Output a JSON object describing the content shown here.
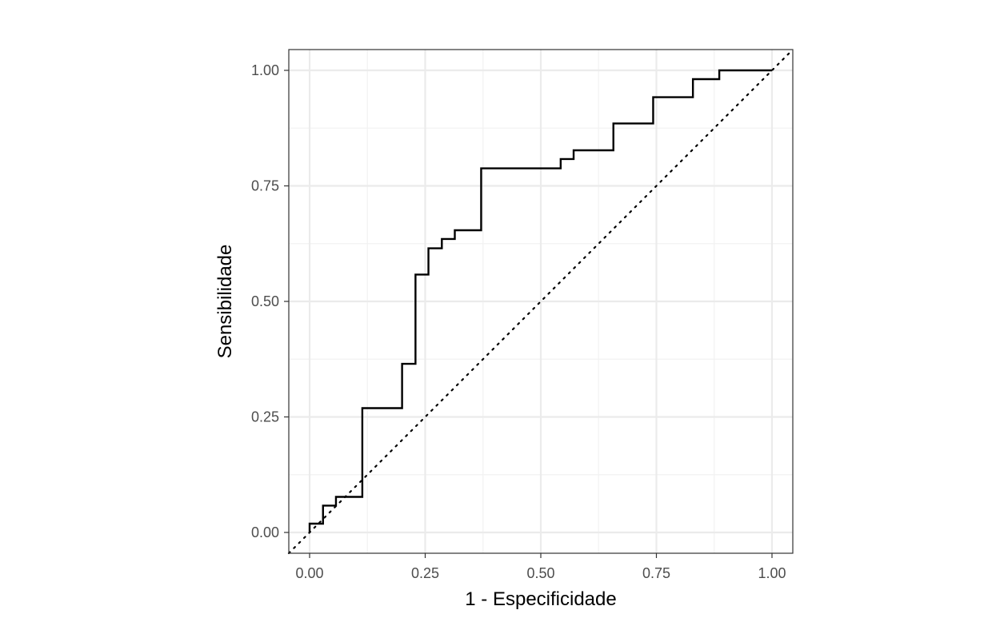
{
  "chart_data": {
    "type": "line",
    "title": "",
    "xlabel": "1 - Especificidade",
    "ylabel": "Sensibilidade",
    "xlim": [
      -0.045,
      1.045
    ],
    "ylim": [
      -0.045,
      1.045
    ],
    "x_ticks": [
      0,
      0.25,
      0.5,
      0.75,
      1
    ],
    "x_tick_labels": [
      "0.00",
      "0.25",
      "0.50",
      "0.75",
      "1.00"
    ],
    "y_ticks": [
      0,
      0.25,
      0.5,
      0.75,
      1
    ],
    "y_tick_labels": [
      "0.00",
      "0.25",
      "0.50",
      "0.75",
      "1.00"
    ],
    "grid": true,
    "legend": "none",
    "reference_line": {
      "style": "dotted",
      "x": [
        -0.045,
        1.045
      ],
      "y": [
        -0.045,
        1.045
      ]
    },
    "series": [
      {
        "style": "step",
        "color": "#000000",
        "x": [
          0,
          0,
          0.029,
          0.029,
          0.057,
          0.057,
          0.114,
          0.114,
          0.2,
          0.2,
          0.229,
          0.229,
          0.257,
          0.257,
          0.286,
          0.286,
          0.314,
          0.314,
          0.371,
          0.371,
          0.543,
          0.543,
          0.571,
          0.571,
          0.657,
          0.657,
          0.743,
          0.743,
          0.829,
          0.829,
          0.886,
          0.886,
          1.0
        ],
        "y": [
          0,
          0.019,
          0.019,
          0.058,
          0.058,
          0.077,
          0.077,
          0.269,
          0.269,
          0.365,
          0.365,
          0.558,
          0.558,
          0.615,
          0.615,
          0.635,
          0.635,
          0.654,
          0.654,
          0.788,
          0.788,
          0.808,
          0.808,
          0.827,
          0.827,
          0.885,
          0.885,
          0.942,
          0.942,
          0.981,
          0.981,
          1.0,
          1.0
        ]
      }
    ]
  },
  "colors": {
    "panel_border": "#333333",
    "grid_major": "#ebebeb",
    "grid_minor": "#f2f2f2",
    "line": "#000000"
  }
}
